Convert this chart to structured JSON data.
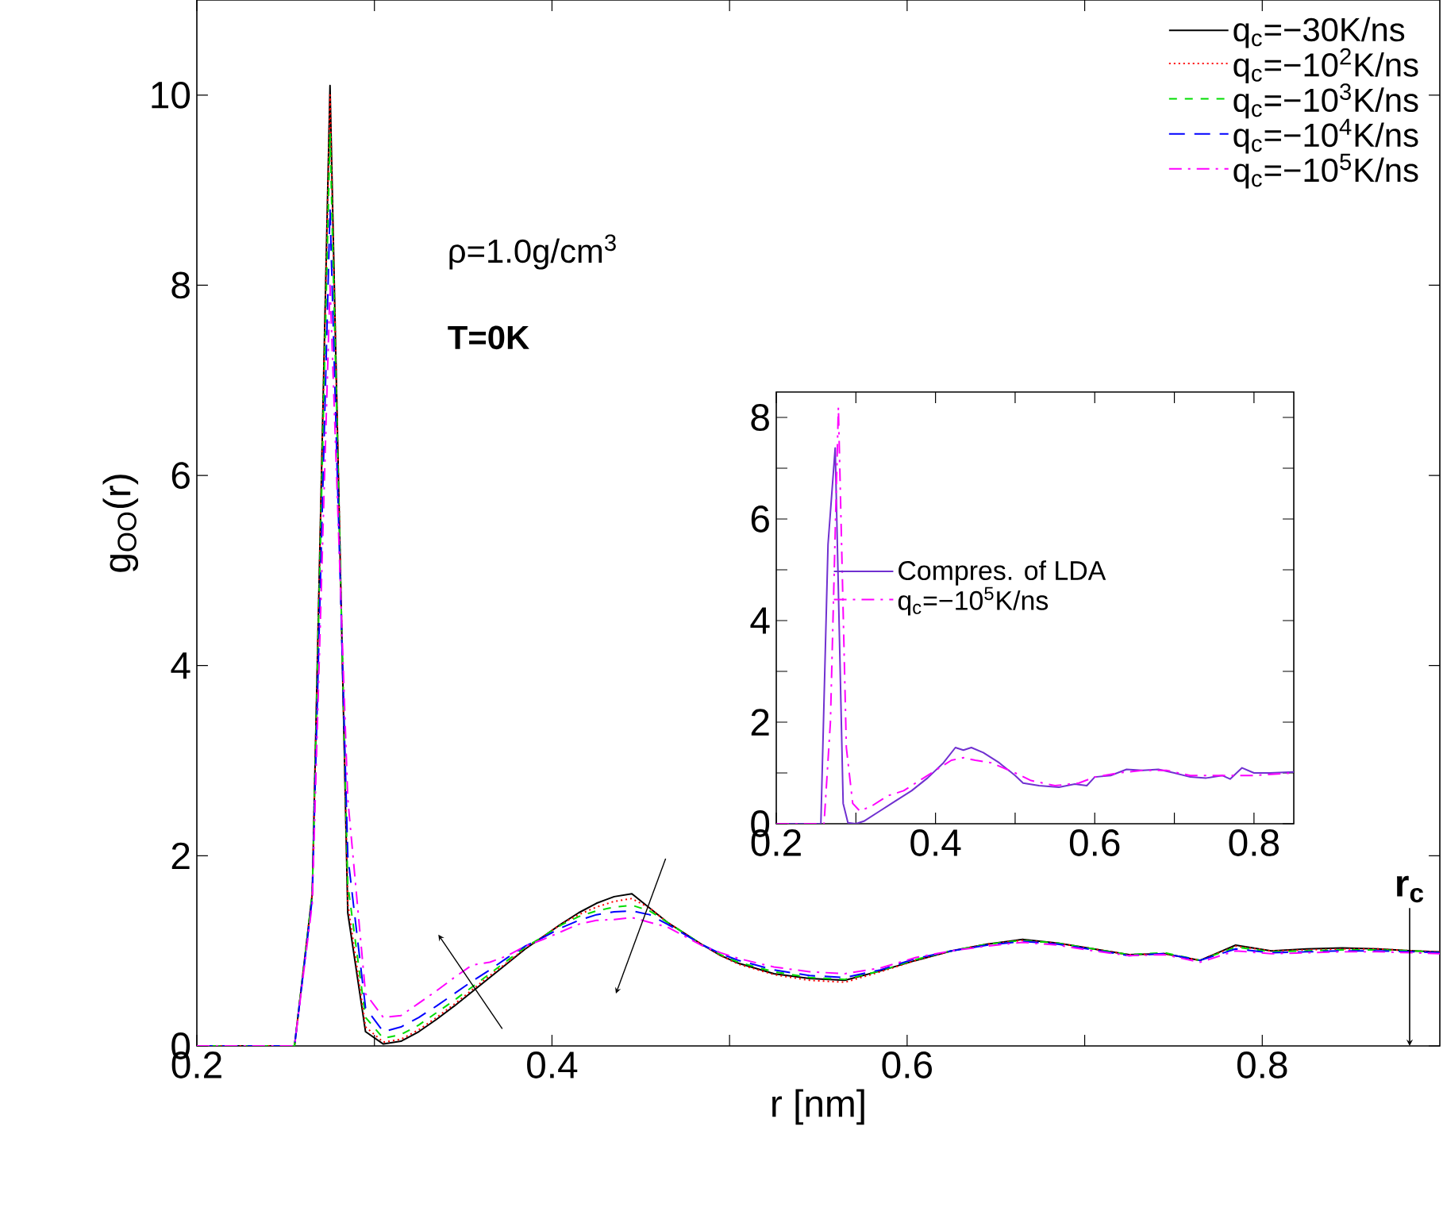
{
  "chart_data": [
    {
      "type": "line",
      "xlabel": "r [nm]",
      "ylabel": "g$_{OO}$(r)",
      "xlim": [
        0.2,
        0.9
      ],
      "ylim": [
        0,
        11
      ],
      "xticks": [
        0.2,
        {
          "value": 0.3,
          "label": null
        },
        0.4,
        {
          "value": 0.5,
          "label": null
        },
        0.6,
        {
          "value": 0.7,
          "label": null
        },
        0.8
      ],
      "yticks": [
        0,
        2,
        4,
        6,
        8,
        10
      ],
      "legend": "top right",
      "x": [
        0.2,
        0.255,
        0.265,
        0.275,
        0.285,
        0.295,
        0.305,
        0.315,
        0.325,
        0.335,
        0.345,
        0.355,
        0.365,
        0.375,
        0.385,
        0.395,
        0.405,
        0.415,
        0.425,
        0.435,
        0.445,
        0.455,
        0.465,
        0.475,
        0.485,
        0.495,
        0.505,
        0.525,
        0.545,
        0.565,
        0.585,
        0.605,
        0.625,
        0.645,
        0.665,
        0.685,
        0.705,
        0.725,
        0.745,
        0.765,
        0.785,
        0.805,
        0.825,
        0.845,
        0.865,
        0.885,
        0.9
      ],
      "series": [
        {
          "name": "q$_{c}$=−30K/ns",
          "color": "#000000",
          "line_style": "solid",
          "values": [
            0,
            0,
            1.6,
            10.1,
            1.4,
            0.15,
            0.02,
            0.05,
            0.15,
            0.28,
            0.42,
            0.57,
            0.72,
            0.87,
            1.02,
            1.15,
            1.28,
            1.4,
            1.5,
            1.57,
            1.6,
            1.45,
            1.3,
            1.18,
            1.06,
            0.95,
            0.87,
            0.76,
            0.71,
            0.69,
            0.79,
            0.9,
            1.0,
            1.07,
            1.12,
            1.08,
            1.02,
            0.96,
            0.97,
            0.9,
            1.06,
            1.0,
            1.02,
            1.03,
            1.02,
            1.0,
            0.99
          ]
        },
        {
          "name": "q$_{c}$=−10$^{2}$K/ns",
          "color": "#ff0000",
          "line_style": "dotted",
          "values": [
            0,
            0,
            1.6,
            10.0,
            1.5,
            0.2,
            0.04,
            0.07,
            0.17,
            0.3,
            0.44,
            0.59,
            0.74,
            0.88,
            1.03,
            1.15,
            1.28,
            1.38,
            1.46,
            1.52,
            1.55,
            1.45,
            1.3,
            1.18,
            1.06,
            0.95,
            0.86,
            0.75,
            0.69,
            0.67,
            0.78,
            0.9,
            1.0,
            1.07,
            1.11,
            1.08,
            1.02,
            0.96,
            0.97,
            0.9,
            1.05,
            1.0,
            1.01,
            1.02,
            1.02,
            1.0,
            0.99
          ]
        },
        {
          "name": "q$_{c}$=−10$^{3}$K/ns",
          "color": "#00dd00",
          "line_style": "dashed",
          "values": [
            0,
            0,
            1.6,
            9.6,
            1.7,
            0.3,
            0.08,
            0.12,
            0.22,
            0.35,
            0.48,
            0.62,
            0.76,
            0.9,
            1.04,
            1.15,
            1.27,
            1.36,
            1.42,
            1.46,
            1.48,
            1.42,
            1.3,
            1.18,
            1.06,
            0.96,
            0.88,
            0.78,
            0.72,
            0.7,
            0.79,
            0.91,
            1.0,
            1.07,
            1.11,
            1.08,
            1.02,
            0.96,
            0.98,
            0.9,
            1.04,
            0.99,
            1.0,
            1.01,
            1.01,
            1.0,
            0.98
          ]
        },
        {
          "name": "q$_{c}$=−10$^{4}$K/ns",
          "color": "#0000ff",
          "line_style": "long dashed",
          "values": [
            0,
            0,
            1.55,
            8.8,
            2.0,
            0.4,
            0.15,
            0.2,
            0.3,
            0.42,
            0.55,
            0.68,
            0.8,
            0.93,
            1.05,
            1.14,
            1.24,
            1.32,
            1.38,
            1.41,
            1.42,
            1.38,
            1.28,
            1.17,
            1.06,
            0.97,
            0.9,
            0.8,
            0.74,
            0.72,
            0.8,
            0.92,
            1.0,
            1.06,
            1.1,
            1.07,
            1.01,
            0.95,
            0.97,
            0.9,
            1.02,
            0.98,
            0.99,
            1.0,
            1.0,
            0.99,
            0.98
          ]
        },
        {
          "name": "q$_{c}$=−10$^{5}$K/ns",
          "color": "#ff00ff",
          "line_style": "dash dot",
          "values": [
            0,
            0,
            1.5,
            8.0,
            2.6,
            0.55,
            0.3,
            0.32,
            0.45,
            0.58,
            0.72,
            0.85,
            0.88,
            0.95,
            1.05,
            1.12,
            1.2,
            1.28,
            1.32,
            1.33,
            1.35,
            1.3,
            1.25,
            1.15,
            1.05,
            0.98,
            0.92,
            0.83,
            0.78,
            0.76,
            0.82,
            0.93,
            1.0,
            1.05,
            1.09,
            1.06,
            1.0,
            0.95,
            0.96,
            0.88,
            1.0,
            0.97,
            0.98,
            0.99,
            0.99,
            0.98,
            0.97
          ]
        }
      ],
      "annotations": [
        "ρ=1.0g/cm$^{3}$",
        "T=0K",
        "r$_{c}$"
      ]
    },
    {
      "type": "line",
      "xlim": [
        0.2,
        0.85
      ],
      "ylim": [
        0,
        8.5
      ],
      "xticks": [
        0.2,
        {
          "value": 0.3,
          "label": null
        },
        0.4,
        {
          "value": 0.5,
          "label": null
        },
        0.6,
        {
          "value": 0.7,
          "label": null
        },
        0.8
      ],
      "yticks": [
        0,
        {
          "value": 1,
          "label": null
        },
        2,
        {
          "value": 3,
          "label": null
        },
        4,
        {
          "value": 5,
          "label": null
        },
        6,
        {
          "value": 7,
          "label": null
        },
        8
      ],
      "legend": "left",
      "series": [
        {
          "name": "Compres. of LDA",
          "color": "#7030d0",
          "line_style": "solid",
          "x": [
            0.2,
            0.256,
            0.265,
            0.274,
            0.284,
            0.29,
            0.3,
            0.31,
            0.33,
            0.35,
            0.37,
            0.39,
            0.41,
            0.425,
            0.435,
            0.445,
            0.46,
            0.48,
            0.5,
            0.51,
            0.53,
            0.555,
            0.575,
            0.59,
            0.6,
            0.62,
            0.64,
            0.66,
            0.68,
            0.7,
            0.72,
            0.74,
            0.76,
            0.77,
            0.785,
            0.8,
            0.82,
            0.85
          ],
          "values": [
            0,
            0,
            5.5,
            7.4,
            0.4,
            0.02,
            0,
            0.05,
            0.25,
            0.45,
            0.65,
            0.9,
            1.2,
            1.5,
            1.45,
            1.5,
            1.4,
            1.2,
            0.95,
            0.8,
            0.75,
            0.72,
            0.78,
            0.75,
            0.92,
            0.95,
            1.07,
            1.05,
            1.07,
            1.0,
            0.92,
            0.9,
            0.95,
            0.88,
            1.1,
            1.0,
            1.0,
            1.02
          ]
        },
        {
          "name": "q$_{c}$=−10$^{5}$K/ns",
          "color": "#ff00ff",
          "line_style": "dash dot",
          "x": [
            0.2,
            0.26,
            0.268,
            0.278,
            0.288,
            0.296,
            0.305,
            0.32,
            0.34,
            0.36,
            0.38,
            0.4,
            0.42,
            0.435,
            0.45,
            0.47,
            0.5,
            0.52,
            0.55,
            0.58,
            0.6,
            0.63,
            0.66,
            0.69,
            0.72,
            0.75,
            0.77,
            0.8,
            0.85
          ],
          "values": [
            0,
            0,
            2,
            8.2,
            1.5,
            0.4,
            0.25,
            0.35,
            0.55,
            0.65,
            0.85,
            1.05,
            1.25,
            1.3,
            1.25,
            1.2,
            1.0,
            0.85,
            0.75,
            0.8,
            0.92,
            1.0,
            1.05,
            1.05,
            0.95,
            0.95,
            0.95,
            0.95,
            1.0
          ]
        }
      ]
    }
  ]
}
